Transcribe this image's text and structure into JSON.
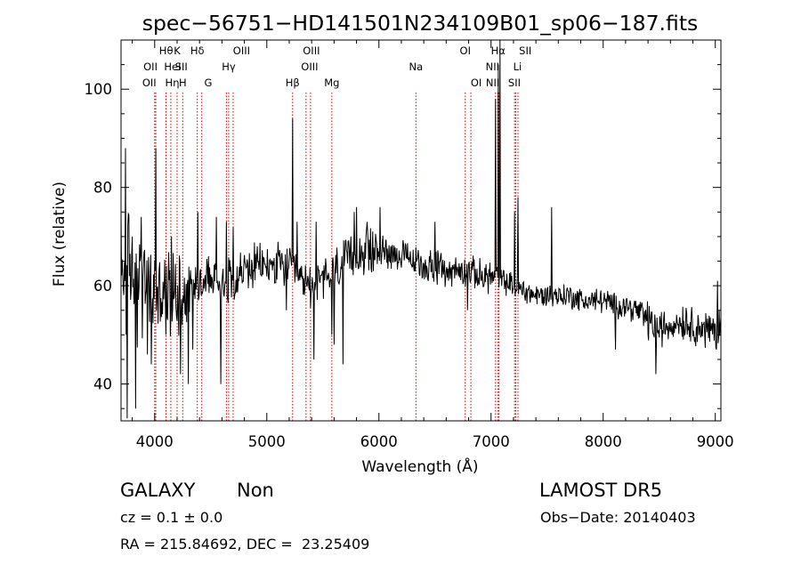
{
  "chart_data": {
    "type": "line",
    "title": "spec−56751−HD141501N234109B01_sp06−187.fits",
    "xlabel": "Wavelength (Å)",
    "ylabel": "Flux (relative)",
    "xlim": [
      3700,
      9050
    ],
    "ylim": [
      32.5,
      110
    ],
    "xticks": [
      4000,
      5000,
      6000,
      7000,
      8000,
      9000
    ],
    "yticks": [
      40,
      60,
      80,
      100
    ],
    "grid": false,
    "line_color": "#000000",
    "marker_color": "#cc0000",
    "anchors": [
      [
        3700,
        62
      ],
      [
        3760,
        63
      ],
      [
        3830,
        62
      ],
      [
        3900,
        60
      ],
      [
        3960,
        59
      ],
      [
        4030,
        58
      ],
      [
        4100,
        58
      ],
      [
        4200,
        59
      ],
      [
        4300,
        60
      ],
      [
        4400,
        61
      ],
      [
        4500,
        61
      ],
      [
        4600,
        61
      ],
      [
        4700,
        62
      ],
      [
        4800,
        63
      ],
      [
        4900,
        64
      ],
      [
        5000,
        64
      ],
      [
        5100,
        64
      ],
      [
        5200,
        64
      ],
      [
        5300,
        61
      ],
      [
        5400,
        60
      ],
      [
        5500,
        61
      ],
      [
        5600,
        63
      ],
      [
        5700,
        65
      ],
      [
        5800,
        66
      ],
      [
        5900,
        67
      ],
      [
        6000,
        67
      ],
      [
        6100,
        67
      ],
      [
        6200,
        66
      ],
      [
        6300,
        65
      ],
      [
        6400,
        64
      ],
      [
        6500,
        64
      ],
      [
        6600,
        63
      ],
      [
        6700,
        63
      ],
      [
        6800,
        63
      ],
      [
        6900,
        62
      ],
      [
        7000,
        62
      ],
      [
        7100,
        61
      ],
      [
        7200,
        60
      ],
      [
        7300,
        59
      ],
      [
        7400,
        58
      ],
      [
        7500,
        58
      ],
      [
        7600,
        58
      ],
      [
        7700,
        58
      ],
      [
        7800,
        57
      ],
      [
        7900,
        57
      ],
      [
        8000,
        57
      ],
      [
        8100,
        56
      ],
      [
        8200,
        56
      ],
      [
        8300,
        55
      ],
      [
        8400,
        53
      ],
      [
        8500,
        51
      ],
      [
        8600,
        52
      ],
      [
        8700,
        53
      ],
      [
        8800,
        52
      ],
      [
        8900,
        51
      ],
      [
        9000,
        51
      ],
      [
        9050,
        52
      ]
    ],
    "features": [
      [
        3700,
        75
      ],
      [
        3740,
        88
      ],
      [
        3755,
        33
      ],
      [
        3800,
        70
      ],
      [
        3830,
        35
      ],
      [
        3880,
        74
      ],
      [
        3934,
        46
      ],
      [
        3970,
        44
      ],
      [
        4010,
        88
      ],
      [
        4101,
        50
      ],
      [
        4150,
        70
      ],
      [
        4230,
        42
      ],
      [
        4300,
        40
      ],
      [
        4340,
        47
      ],
      [
        4385,
        75
      ],
      [
        4480,
        66
      ],
      [
        4550,
        74
      ],
      [
        4590,
        40
      ],
      [
        4640,
        73
      ],
      [
        4700,
        72
      ],
      [
        5175,
        55
      ],
      [
        5230,
        94
      ],
      [
        5270,
        73
      ],
      [
        5420,
        45
      ],
      [
        5440,
        73
      ],
      [
        5580,
        50
      ],
      [
        5600,
        48
      ],
      [
        5680,
        44
      ],
      [
        5780,
        75
      ],
      [
        5800,
        76
      ],
      [
        5895,
        73
      ],
      [
        6010,
        76
      ],
      [
        6500,
        73
      ],
      [
        6790,
        55
      ],
      [
        7040,
        98
      ],
      [
        7065,
        105
      ],
      [
        7080,
        110
      ],
      [
        7210,
        75
      ],
      [
        7240,
        78
      ],
      [
        7540,
        76
      ],
      [
        8110,
        47
      ],
      [
        8470,
        42
      ],
      [
        9010,
        47
      ],
      [
        9020,
        61
      ]
    ],
    "lines": [
      {
        "name": "OII",
        "x": 4000,
        "row": 2,
        "dx": -6
      },
      {
        "name": "OII",
        "x": 4010,
        "row": 1,
        "dx": -6
      },
      {
        "name": "Hη",
        "x": 4101,
        "row": 2,
        "dx": 7
      },
      {
        "name": "Hθ",
        "x": 4102,
        "row": 0,
        "dx": 0
      },
      {
        "name": "HeI",
        "x": 4144,
        "row": 1,
        "dx": 2
      },
      {
        "name": "K",
        "x": 4200,
        "row": 0,
        "dx": 0
      },
      {
        "name": "H",
        "x": 4250,
        "row": 2,
        "dx": 0
      },
      {
        "name": "Hδ",
        "x": 4380,
        "row": 0,
        "dx": 0
      },
      {
        "name": "SII",
        "x": 4420,
        "row": 1,
        "dx": -23
      },
      {
        "name": "OIII",
        "x": 4640,
        "row": 0,
        "dx": 17
      },
      {
        "name": "Hγ",
        "x": 4660,
        "row": 1,
        "dx": 0
      },
      {
        "name": "G",
        "x": 4700,
        "row": 2,
        "dx": -28
      },
      {
        "name": "Hβ",
        "x": 5230,
        "row": 2,
        "dx": 0
      },
      {
        "name": "OIII",
        "x": 5350,
        "row": 0,
        "dx": 6
      },
      {
        "name": "OIII",
        "x": 5390,
        "row": 1,
        "dx": -1
      },
      {
        "name": "Mg",
        "x": 5580,
        "row": 2,
        "dx": 0
      },
      {
        "name": "Na",
        "x": 6330,
        "row": 1,
        "dx": 0
      },
      {
        "name": "OI",
        "x": 6770,
        "row": 0,
        "dx": 0
      },
      {
        "name": "OI",
        "x": 6820,
        "row": 2,
        "dx": 6
      },
      {
        "name": "Hα",
        "x": 7040,
        "row": 0,
        "dx": 3
      },
      {
        "name": "NII",
        "x": 7060,
        "row": 1,
        "dx": -6
      },
      {
        "name": "NII",
        "x": 7070,
        "row": 2,
        "dx": -7
      },
      {
        "name": "SII",
        "x": 7210,
        "row": 0,
        "dx": 12
      },
      {
        "name": "Li",
        "x": 7220,
        "row": 1,
        "dx": 2
      },
      {
        "name": "SII",
        "x": 7240,
        "row": 2,
        "dx": -4
      }
    ]
  },
  "info": {
    "class": "GALAXY",
    "subclass": "Non",
    "survey": "LAMOST DR5",
    "cz": "cz = 0.1 ± 0.0",
    "obs_date": "Obs−Date: 20140403",
    "coords": "RA = 215.84692, DEC =  23.25409"
  }
}
